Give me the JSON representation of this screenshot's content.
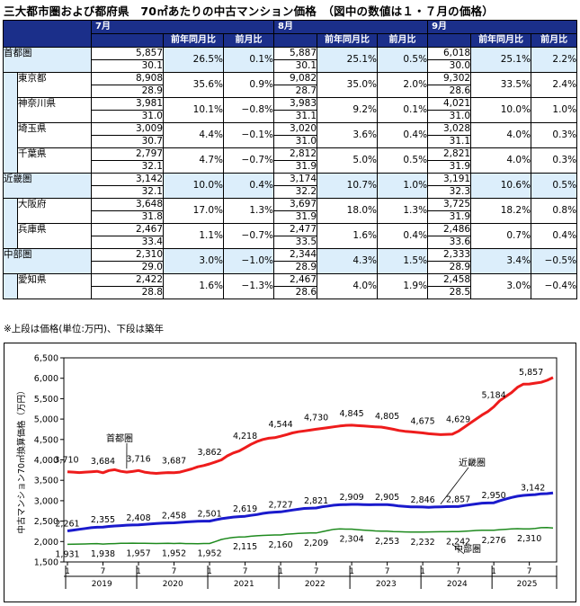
{
  "title": "三大都市圏および都府県　70㎡あたりの中古マンション価格　（図中の数値は１・７月の価格）",
  "note": "※上段は価格(単位:万円)、下段は築年",
  "table": {
    "months": [
      "7月",
      "8月",
      "9月"
    ],
    "subheaders": [
      "前年同月比",
      "前月比"
    ],
    "rows": [
      {
        "group": "首都圏",
        "name": "",
        "cells": [
          {
            "price": "5,857",
            "age": "30.1",
            "yoy": "26.5%",
            "mom": "0.1%"
          },
          {
            "price": "5,887",
            "age": "30.1",
            "yoy": "25.1%",
            "mom": "0.5%"
          },
          {
            "price": "6,018",
            "age": "30.0",
            "yoy": "25.1%",
            "mom": "2.2%"
          }
        ]
      },
      {
        "group": "",
        "name": "東京都",
        "cells": [
          {
            "price": "8,908",
            "age": "28.9",
            "yoy": "35.6%",
            "mom": "0.9%"
          },
          {
            "price": "9,082",
            "age": "28.7",
            "yoy": "35.0%",
            "mom": "2.0%"
          },
          {
            "price": "9,302",
            "age": "28.6",
            "yoy": "33.5%",
            "mom": "2.4%"
          }
        ]
      },
      {
        "group": "",
        "name": "神奈川県",
        "cells": [
          {
            "price": "3,981",
            "age": "31.0",
            "yoy": "10.1%",
            "mom": "−0.8%"
          },
          {
            "price": "3,983",
            "age": "31.1",
            "yoy": "9.2%",
            "mom": "0.1%"
          },
          {
            "price": "4,021",
            "age": "31.0",
            "yoy": "10.0%",
            "mom": "1.0%"
          }
        ]
      },
      {
        "group": "",
        "name": "埼玉県",
        "cells": [
          {
            "price": "3,009",
            "age": "30.7",
            "yoy": "4.4%",
            "mom": "−0.1%"
          },
          {
            "price": "3,020",
            "age": "31.0",
            "yoy": "3.6%",
            "mom": "0.4%"
          },
          {
            "price": "3,028",
            "age": "31.1",
            "yoy": "4.0%",
            "mom": "0.3%"
          }
        ]
      },
      {
        "group": "",
        "name": "千葉県",
        "cells": [
          {
            "price": "2,797",
            "age": "32.1",
            "yoy": "4.7%",
            "mom": "−0.7%"
          },
          {
            "price": "2,812",
            "age": "31.9",
            "yoy": "5.0%",
            "mom": "0.5%"
          },
          {
            "price": "2,821",
            "age": "31.9",
            "yoy": "4.0%",
            "mom": "0.3%"
          }
        ]
      },
      {
        "group": "近畿圏",
        "name": "",
        "cells": [
          {
            "price": "3,142",
            "age": "32.1",
            "yoy": "10.0%",
            "mom": "0.4%"
          },
          {
            "price": "3,174",
            "age": "32.2",
            "yoy": "10.7%",
            "mom": "1.0%"
          },
          {
            "price": "3,191",
            "age": "32.3",
            "yoy": "10.6%",
            "mom": "0.5%"
          }
        ]
      },
      {
        "group": "",
        "name": "大阪府",
        "cells": [
          {
            "price": "3,648",
            "age": "31.8",
            "yoy": "17.0%",
            "mom": "1.3%"
          },
          {
            "price": "3,697",
            "age": "31.9",
            "yoy": "18.0%",
            "mom": "1.3%"
          },
          {
            "price": "3,725",
            "age": "31.9",
            "yoy": "18.2%",
            "mom": "0.8%"
          }
        ]
      },
      {
        "group": "",
        "name": "兵庫県",
        "cells": [
          {
            "price": "2,467",
            "age": "33.4",
            "yoy": "1.1%",
            "mom": "−0.7%"
          },
          {
            "price": "2,477",
            "age": "33.5",
            "yoy": "1.6%",
            "mom": "0.4%"
          },
          {
            "price": "2,486",
            "age": "33.6",
            "yoy": "0.7%",
            "mom": "0.4%"
          }
        ]
      },
      {
        "group": "中部圏",
        "name": "",
        "cells": [
          {
            "price": "2,310",
            "age": "29.0",
            "yoy": "3.0%",
            "mom": "−1.0%"
          },
          {
            "price": "2,344",
            "age": "28.9",
            "yoy": "4.3%",
            "mom": "1.5%"
          },
          {
            "price": "2,333",
            "age": "28.9",
            "yoy": "3.4%",
            "mom": "−0.5%"
          }
        ]
      },
      {
        "group": "",
        "name": "愛知県",
        "cells": [
          {
            "price": "2,422",
            "age": "28.8",
            "yoy": "1.6%",
            "mom": "−1.3%"
          },
          {
            "price": "2,467",
            "age": "28.6",
            "yoy": "4.0%",
            "mom": "1.9%"
          },
          {
            "price": "2,458",
            "age": "28.5",
            "yoy": "3.0%",
            "mom": "−0.4%"
          }
        ]
      }
    ]
  },
  "chart_data": {
    "type": "line",
    "ylabel": "中古マンション70㎡換算価格（万円）",
    "ylim": [
      1500,
      6500
    ],
    "yticks": [
      1500,
      2000,
      2500,
      3000,
      3500,
      4000,
      4500,
      5000,
      5500,
      6000,
      6500
    ],
    "ytick_labels": [
      "1,500",
      "2,000",
      "2,500",
      "3,000",
      "3,500",
      "4,000",
      "4,500",
      "5,000",
      "5,500",
      "6,000",
      "6,500"
    ],
    "x_month_labels": [
      "1",
      "7",
      "1",
      "7",
      "1",
      "7",
      "1",
      "7",
      "1",
      "7",
      "1",
      "7",
      "1",
      "7"
    ],
    "x_year_labels": [
      "2019",
      "2020",
      "2021",
      "2022",
      "2023",
      "2024",
      "2025"
    ],
    "series": [
      {
        "name": "首都圏",
        "color": "#ee1c1c",
        "values": [
          3710,
          3700,
          3690,
          3700,
          3710,
          3720,
          3684,
          3740,
          3760,
          3720,
          3700,
          3716,
          3740,
          3700,
          3680,
          3670,
          3680,
          3690,
          3687,
          3700,
          3740,
          3780,
          3830,
          3862,
          3900,
          3950,
          4000,
          4100,
          4170,
          4218,
          4300,
          4380,
          4450,
          4500,
          4530,
          4544,
          4580,
          4620,
          4660,
          4690,
          4710,
          4730,
          4750,
          4770,
          4790,
          4810,
          4830,
          4845,
          4850,
          4840,
          4830,
          4820,
          4810,
          4805,
          4780,
          4750,
          4720,
          4700,
          4690,
          4675,
          4660,
          4640,
          4630,
          4620,
          4625,
          4629,
          4700,
          4800,
          4900,
          5000,
          5100,
          5184,
          5300,
          5450,
          5550,
          5650,
          5780,
          5857,
          5860,
          5880,
          5900,
          5950,
          6018
        ]
      },
      {
        "name": "近畿圏",
        "color": "#1a1acc",
        "values": [
          2261,
          2280,
          2300,
          2320,
          2340,
          2350,
          2355,
          2370,
          2380,
          2390,
          2400,
          2405,
          2408,
          2420,
          2430,
          2440,
          2450,
          2455,
          2458,
          2470,
          2480,
          2490,
          2495,
          2500,
          2501,
          2530,
          2560,
          2580,
          2600,
          2610,
          2619,
          2640,
          2660,
          2690,
          2710,
          2720,
          2727,
          2750,
          2770,
          2790,
          2810,
          2815,
          2821,
          2850,
          2870,
          2890,
          2900,
          2905,
          2909,
          2910,
          2905,
          2900,
          2905,
          2906,
          2905,
          2890,
          2870,
          2860,
          2850,
          2847,
          2846,
          2840,
          2845,
          2850,
          2855,
          2856,
          2857,
          2880,
          2900,
          2920,
          2940,
          2945,
          2950,
          3000,
          3040,
          3080,
          3110,
          3130,
          3142,
          3150,
          3170,
          3174,
          3191
        ]
      },
      {
        "name": "中部圏",
        "color": "#1e8a1e",
        "values": [
          1931,
          1935,
          1938,
          1940,
          1945,
          1950,
          1938,
          1945,
          1950,
          1955,
          1957,
          1960,
          1957,
          1955,
          1954,
          1952,
          1953,
          1955,
          1952,
          1955,
          1950,
          1950,
          1948,
          1952,
          1952,
          2000,
          2050,
          2080,
          2100,
          2110,
          2115,
          2130,
          2140,
          2150,
          2155,
          2160,
          2160,
          2180,
          2190,
          2200,
          2205,
          2210,
          2209,
          2240,
          2270,
          2300,
          2310,
          2305,
          2304,
          2290,
          2280,
          2270,
          2260,
          2255,
          2253,
          2245,
          2240,
          2235,
          2232,
          2232,
          2232,
          2235,
          2238,
          2240,
          2241,
          2242,
          2242,
          2250,
          2260,
          2270,
          2275,
          2277,
          2276,
          2290,
          2300,
          2310,
          2315,
          2310,
          2310,
          2320,
          2340,
          2344,
          2333
        ]
      }
    ],
    "point_labels": [
      {
        "series": "首都圏",
        "values": [
          "3,710",
          "3,684",
          "3,716",
          "3,687",
          "3,862",
          "4,218",
          "4,544",
          "4,730",
          "4,845",
          "4,805",
          "4,675",
          "4,629",
          "5,184",
          "5,857"
        ]
      },
      {
        "series": "近畿圏",
        "values": [
          "2,261",
          "2,355",
          "2,408",
          "2,458",
          "2,501",
          "2,619",
          "2,727",
          "2,821",
          "2,909",
          "2,905",
          "2,846",
          "2,857",
          "2,950",
          "3,142"
        ]
      },
      {
        "series": "中部圏",
        "values": [
          "1,931",
          "1,938",
          "1,957",
          "1,952",
          "1,952",
          "2,115",
          "2,160",
          "2,209",
          "2,304",
          "2,253",
          "2,232",
          "2,242",
          "2,276",
          "2,310"
        ]
      }
    ]
  }
}
